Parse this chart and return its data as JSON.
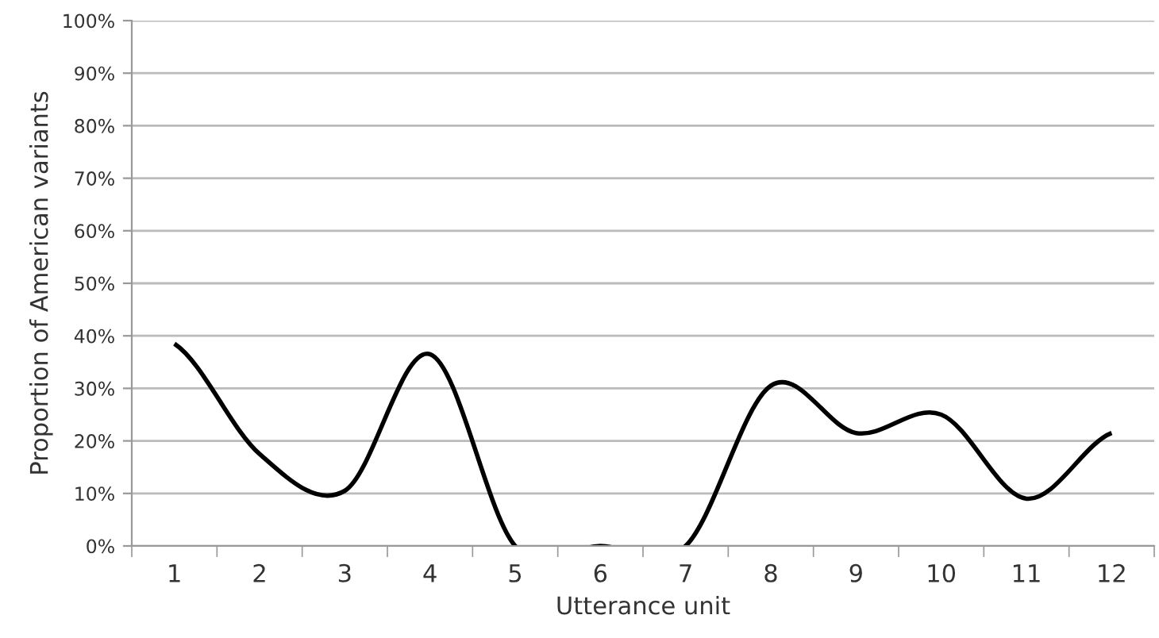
{
  "chart_data": {
    "type": "line",
    "xlabel": "Utterance unit",
    "ylabel": "Proportion of American variants",
    "categories": [
      "1",
      "2",
      "3",
      "4",
      "5",
      "6",
      "7",
      "8",
      "9",
      "10",
      "11",
      "12"
    ],
    "series": [
      {
        "color": "#000000",
        "values": [
          38.5,
          17.5,
          10.5,
          36.5,
          0,
          0,
          0,
          30.5,
          21.5,
          25,
          9,
          21.5
        ]
      }
    ],
    "ylim": [
      0,
      100
    ],
    "yticks": [
      {
        "value": 0,
        "label": "0%"
      },
      {
        "value": 10,
        "label": "10%"
      },
      {
        "value": 20,
        "label": "20%"
      },
      {
        "value": 30,
        "label": "30%"
      },
      {
        "value": 40,
        "label": "40%"
      },
      {
        "value": 50,
        "label": "50%"
      },
      {
        "value": 60,
        "label": "60%"
      },
      {
        "value": 70,
        "label": "70%"
      },
      {
        "value": 80,
        "label": "80%"
      },
      {
        "value": 90,
        "label": "90%"
      },
      {
        "value": 100,
        "label": "100%"
      }
    ],
    "grid": "y",
    "marker": "none",
    "line_style": "solid"
  }
}
